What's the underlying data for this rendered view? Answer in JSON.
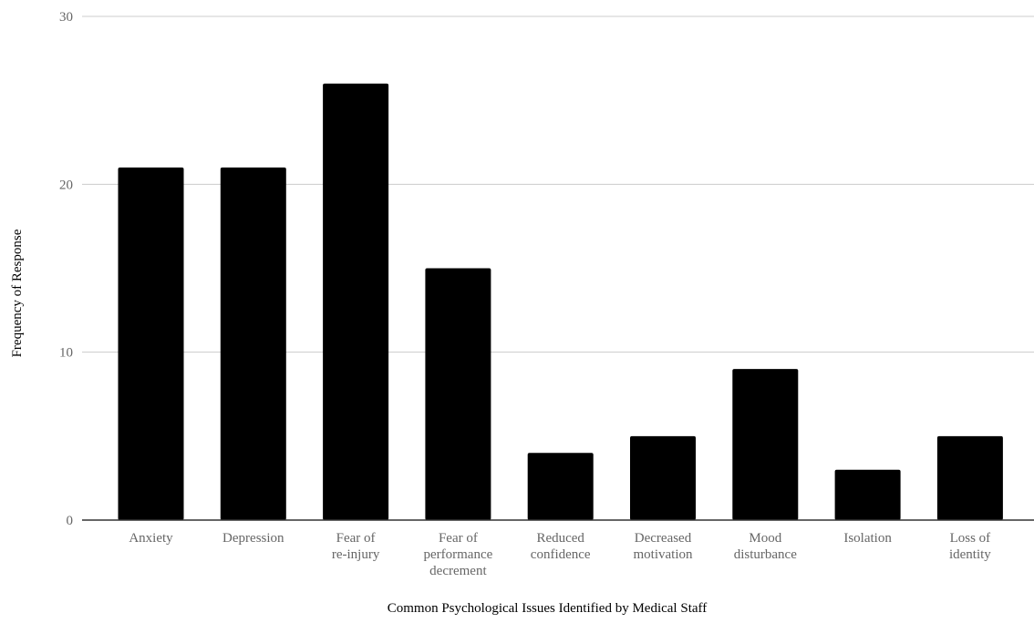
{
  "chart_data": {
    "type": "bar",
    "categories": [
      [
        "Anxiety"
      ],
      [
        "Depression"
      ],
      [
        "Fear of",
        "re-injury"
      ],
      [
        "Fear of",
        "performance",
        "decrement"
      ],
      [
        "Reduced",
        "confidence"
      ],
      [
        "Decreased",
        "motivation"
      ],
      [
        "Mood",
        "disturbance"
      ],
      [
        "Isolation"
      ],
      [
        "Loss of",
        "identity"
      ]
    ],
    "values": [
      21,
      21,
      26,
      15,
      4,
      5,
      9,
      3,
      5
    ],
    "title": "",
    "xlabel": "Common Psychological Issues Identified by Medical Staff",
    "ylabel": "Frequency of Response",
    "ylim": [
      0,
      30
    ],
    "yticks": [
      "0",
      "10",
      "20",
      "30"
    ],
    "grid": true,
    "bar_color": "#000000",
    "grid_color": "#cccccc",
    "axis_color": "#333333"
  }
}
